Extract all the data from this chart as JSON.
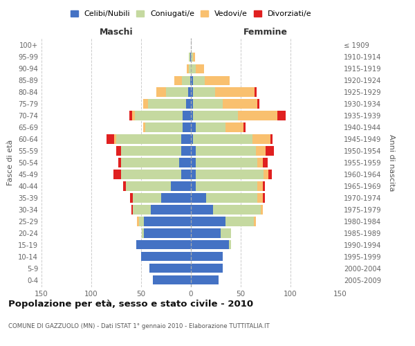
{
  "age_groups_bottom_to_top": [
    "0-4",
    "5-9",
    "10-14",
    "15-19",
    "20-24",
    "25-29",
    "30-34",
    "35-39",
    "40-44",
    "45-49",
    "50-54",
    "55-59",
    "60-64",
    "65-69",
    "70-74",
    "75-79",
    "80-84",
    "85-89",
    "90-94",
    "95-99",
    "100+"
  ],
  "birth_years_bottom_to_top": [
    "2005-2009",
    "2000-2004",
    "1995-1999",
    "1990-1994",
    "1985-1989",
    "1980-1984",
    "1975-1979",
    "1970-1974",
    "1965-1969",
    "1960-1964",
    "1955-1959",
    "1950-1954",
    "1945-1949",
    "1940-1944",
    "1935-1939",
    "1930-1934",
    "1925-1929",
    "1920-1924",
    "1915-1919",
    "1910-1914",
    "≤ 1909"
  ],
  "males": {
    "celibe": [
      38,
      42,
      50,
      55,
      47,
      47,
      40,
      30,
      20,
      10,
      12,
      10,
      10,
      8,
      8,
      5,
      3,
      1,
      0,
      1,
      0
    ],
    "coniugato": [
      0,
      0,
      0,
      0,
      2,
      5,
      18,
      28,
      45,
      60,
      58,
      60,
      65,
      38,
      48,
      38,
      22,
      8,
      2,
      1,
      0
    ],
    "vedovo": [
      0,
      0,
      0,
      0,
      0,
      2,
      0,
      0,
      0,
      0,
      0,
      0,
      2,
      2,
      3,
      5,
      10,
      8,
      2,
      0,
      0
    ],
    "divorziato": [
      0,
      0,
      0,
      0,
      0,
      0,
      2,
      3,
      3,
      8,
      3,
      5,
      8,
      0,
      3,
      0,
      0,
      0,
      0,
      0,
      0
    ]
  },
  "females": {
    "nubile": [
      28,
      32,
      32,
      38,
      30,
      35,
      22,
      15,
      5,
      5,
      5,
      5,
      2,
      5,
      2,
      2,
      2,
      2,
      0,
      0,
      0
    ],
    "coniugata": [
      0,
      0,
      0,
      2,
      10,
      28,
      48,
      52,
      62,
      68,
      62,
      60,
      60,
      30,
      45,
      30,
      22,
      12,
      5,
      2,
      0
    ],
    "vedova": [
      0,
      0,
      0,
      0,
      0,
      2,
      2,
      5,
      5,
      5,
      5,
      10,
      18,
      18,
      40,
      35,
      40,
      25,
      8,
      2,
      0
    ],
    "divorziata": [
      0,
      0,
      0,
      0,
      0,
      0,
      0,
      2,
      2,
      3,
      5,
      8,
      2,
      2,
      8,
      2,
      2,
      0,
      0,
      0,
      0
    ]
  },
  "colors": {
    "celibe": "#4472c4",
    "coniugato": "#c5d9a0",
    "vedovo": "#f9c06f",
    "divorziato": "#e02020"
  },
  "xlim": 150,
  "title": "Popolazione per età, sesso e stato civile - 2010",
  "subtitle": "COMUNE DI GAZZUOLO (MN) - Dati ISTAT 1° gennaio 2010 - Elaborazione TUTTITALIA.IT",
  "xlabel_left": "Maschi",
  "xlabel_right": "Femmine",
  "ylabel_left": "Fasce di età",
  "ylabel_right": "Anni di nascita",
  "legend_labels": [
    "Celibi/Nubili",
    "Coniugati/e",
    "Vedovi/e",
    "Divorziati/e"
  ],
  "xticks": [
    -150,
    -100,
    -50,
    0,
    50,
    100,
    150
  ]
}
